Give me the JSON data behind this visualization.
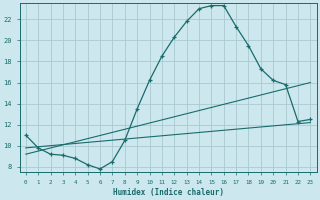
{
  "background_color": "#cce8ee",
  "grid_color": "#aac8d0",
  "line_color": "#1a6b6b",
  "xlabel": "Humidex (Indice chaleur)",
  "xlim": [
    -0.5,
    23.5
  ],
  "ylim": [
    7.5,
    23.5
  ],
  "yticks": [
    8,
    10,
    12,
    14,
    16,
    18,
    20,
    22
  ],
  "xticks": [
    0,
    1,
    2,
    3,
    4,
    5,
    6,
    7,
    8,
    9,
    10,
    11,
    12,
    13,
    14,
    15,
    16,
    17,
    18,
    19,
    20,
    21,
    22,
    23
  ],
  "curve1_x": [
    0,
    1,
    2,
    3,
    4,
    5,
    6,
    7,
    8,
    9,
    10,
    11,
    12,
    13,
    14,
    15,
    16,
    17,
    18,
    19,
    20,
    21,
    22,
    23
  ],
  "curve1_y": [
    11.0,
    9.8,
    9.2,
    9.1,
    8.8,
    8.2,
    7.8,
    8.5,
    10.5,
    13.5,
    16.2,
    18.5,
    20.3,
    21.8,
    23.0,
    23.3,
    23.3,
    21.3,
    19.5,
    17.3,
    16.2,
    15.8,
    12.3,
    12.5
  ],
  "curve2_x": [
    0,
    23
  ],
  "curve2_y": [
    9.2,
    16.0
  ],
  "curve3_x": [
    0,
    23
  ],
  "curve3_y": [
    9.8,
    12.2
  ]
}
